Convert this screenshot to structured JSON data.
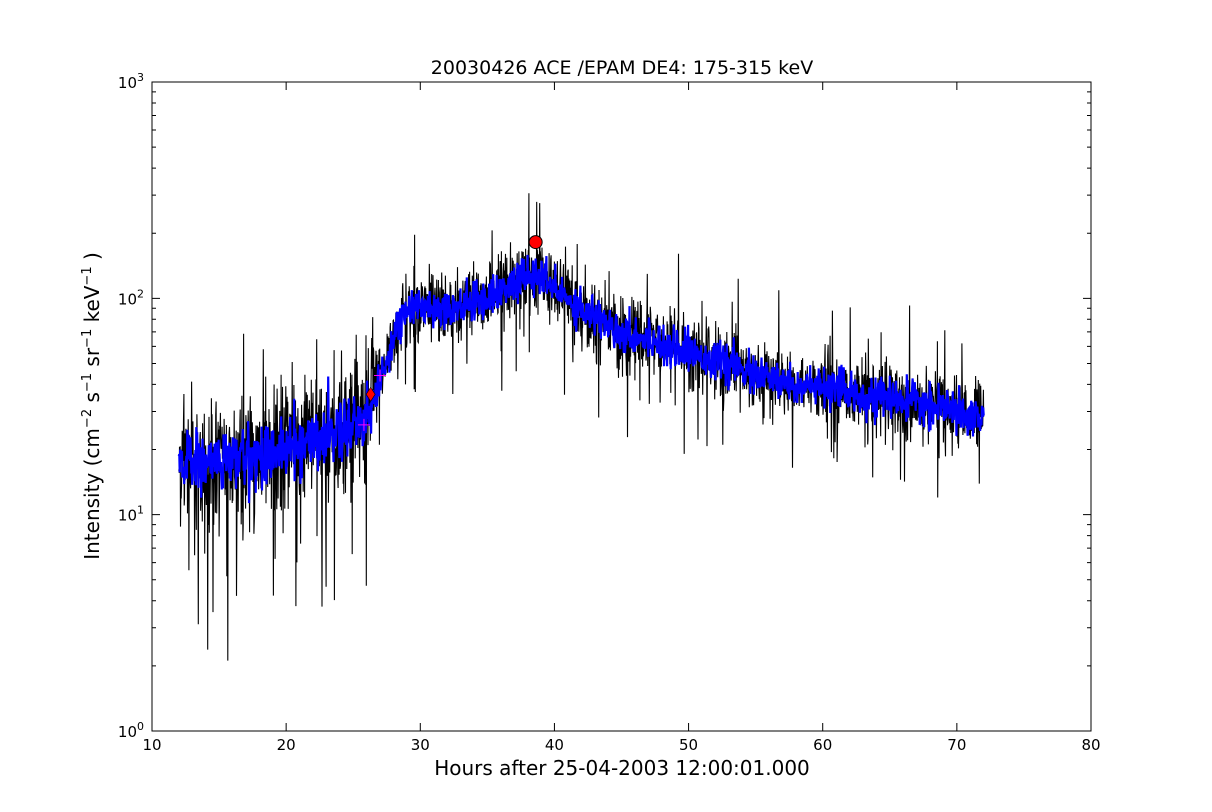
{
  "chart_data": {
    "type": "line",
    "title": "20030426 ACE /EPAM DE4: 175-315 keV",
    "xlabel": "Hours after 25-04-2003 12:00:01.000",
    "ylabel": {
      "base": "Intensity (cm",
      "exp1": "−2",
      "s": " s",
      "exp2": "−1",
      "sr": " sr",
      "exp3": "−1",
      "kev": " keV",
      "exp4": "−1",
      "close": " )"
    },
    "xlim": [
      10,
      80
    ],
    "ylim": [
      1,
      1000
    ],
    "yscale": "log",
    "grid": false,
    "x_ticks": [
      10,
      20,
      30,
      40,
      50,
      60,
      70,
      80
    ],
    "y_ticks": [
      {
        "value": 1,
        "base": "10",
        "exp": "0"
      },
      {
        "value": 10,
        "base": "10",
        "exp": "1"
      },
      {
        "value": 100,
        "base": "10",
        "exp": "2"
      },
      {
        "value": 1000,
        "base": "10",
        "exp": "3"
      }
    ],
    "series": [
      {
        "kind": "raw",
        "color": "#000000",
        "x_range": [
          12.0,
          72.0
        ],
        "envelope": [
          {
            "x": 12,
            "y": 18
          },
          {
            "x": 14,
            "y": 17
          },
          {
            "x": 16,
            "y": 18
          },
          {
            "x": 18,
            "y": 19
          },
          {
            "x": 20,
            "y": 20
          },
          {
            "x": 22,
            "y": 22
          },
          {
            "x": 24,
            "y": 25
          },
          {
            "x": 26,
            "y": 28
          },
          {
            "x": 27,
            "y": 40
          },
          {
            "x": 28,
            "y": 68
          },
          {
            "x": 29,
            "y": 88
          },
          {
            "x": 30,
            "y": 92
          },
          {
            "x": 32,
            "y": 90
          },
          {
            "x": 34,
            "y": 95
          },
          {
            "x": 36,
            "y": 108
          },
          {
            "x": 38,
            "y": 125
          },
          {
            "x": 39,
            "y": 125
          },
          {
            "x": 40,
            "y": 110
          },
          {
            "x": 42,
            "y": 90
          },
          {
            "x": 45,
            "y": 70
          },
          {
            "x": 48,
            "y": 62
          },
          {
            "x": 52,
            "y": 52
          },
          {
            "x": 56,
            "y": 42
          },
          {
            "x": 60,
            "y": 38
          },
          {
            "x": 64,
            "y": 35
          },
          {
            "x": 68,
            "y": 32
          },
          {
            "x": 72,
            "y": 28
          }
        ]
      },
      {
        "kind": "smoothed",
        "color": "#0000ff",
        "x_range": [
          12.0,
          72.0
        ]
      }
    ],
    "markers": [
      {
        "type": "circle",
        "x": 38.6,
        "y": 182,
        "color": "#ff0000"
      },
      {
        "type": "diamond",
        "x": 26.3,
        "y": 36,
        "color": "#ff0000"
      },
      {
        "type": "plus",
        "x": 25.8,
        "y": 26,
        "color": "#ff00ff"
      },
      {
        "type": "plus",
        "x": 27.0,
        "y": 44,
        "color": "#ff00ff"
      }
    ]
  }
}
